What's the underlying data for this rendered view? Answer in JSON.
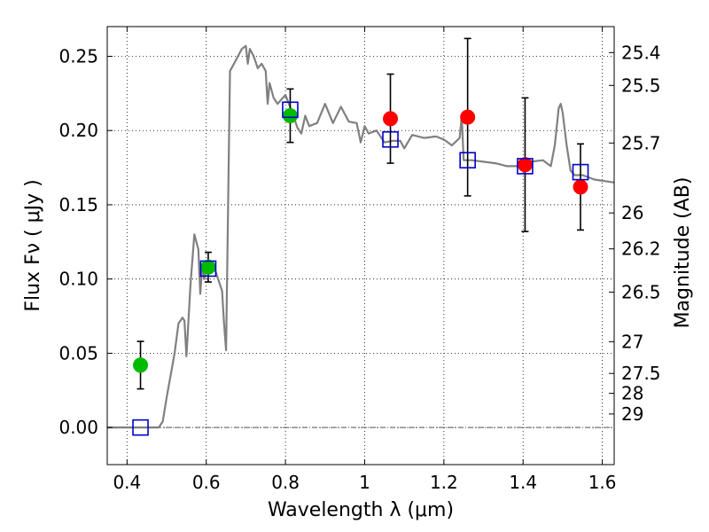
{
  "chart_data": {
    "type": "scatter",
    "xlabel": "Wavelength  λ (μm)",
    "ylabel": "Flux  Fν  ( μJy )",
    "y2label": "Magnitude (AB)",
    "xlim": [
      0.35,
      1.63
    ],
    "ylim": [
      -0.025,
      0.27
    ],
    "grid": true,
    "x_ticks": [
      0.4,
      0.6,
      0.8,
      1.0,
      1.2,
      1.4,
      1.6
    ],
    "x_tick_labels": [
      "0.4",
      "0.6",
      "0.8",
      "1",
      "1.2",
      "1.4",
      "1.6"
    ],
    "y_ticks": [
      0.0,
      0.05,
      0.1,
      0.15,
      0.2,
      0.25
    ],
    "y_tick_labels": [
      "0.00",
      "0.05",
      "0.10",
      "0.15",
      "0.20",
      "0.25"
    ],
    "mag_ticks": [
      {
        "flux": 0.2525,
        "label": "25.4"
      },
      {
        "flux": 0.2304,
        "label": "25.5"
      },
      {
        "flux": 0.1916,
        "label": "25.7"
      },
      {
        "flux": 0.1445,
        "label": "26"
      },
      {
        "flux": 0.1203,
        "label": "26.2"
      },
      {
        "flux": 0.0912,
        "label": "26.5"
      },
      {
        "flux": 0.0578,
        "label": "27"
      },
      {
        "flux": 0.0364,
        "label": "27.5"
      },
      {
        "flux": 0.023,
        "label": "28"
      },
      {
        "flux": 0.0091,
        "label": "29"
      }
    ],
    "zero_line": 0.0,
    "spectrum": {
      "color": "#808080",
      "x": [
        0.35,
        0.4,
        0.44,
        0.47,
        0.48,
        0.49,
        0.5,
        0.52,
        0.53,
        0.54,
        0.545,
        0.55,
        0.56,
        0.57,
        0.58,
        0.585,
        0.59,
        0.595,
        0.6,
        0.62,
        0.63,
        0.64,
        0.645,
        0.65,
        0.66,
        0.67,
        0.68,
        0.69,
        0.7,
        0.705,
        0.71,
        0.72,
        0.73,
        0.74,
        0.75,
        0.755,
        0.76,
        0.77,
        0.78,
        0.8,
        0.82,
        0.83,
        0.84,
        0.85,
        0.86,
        0.88,
        0.9,
        0.92,
        0.94,
        0.96,
        0.98,
        0.99,
        1.0,
        1.01,
        1.03,
        1.05,
        1.07,
        1.09,
        1.1,
        1.12,
        1.15,
        1.18,
        1.2,
        1.22,
        1.24,
        1.245,
        1.25,
        1.27,
        1.3,
        1.33,
        1.36,
        1.39,
        1.42,
        1.45,
        1.47,
        1.48,
        1.49,
        1.495,
        1.5,
        1.51,
        1.52,
        1.53,
        1.55,
        1.58,
        1.63
      ],
      "y": [
        0.0,
        0.0,
        0.0,
        0.0,
        0.0,
        0.004,
        0.02,
        0.05,
        0.07,
        0.074,
        0.072,
        0.048,
        0.095,
        0.13,
        0.12,
        0.09,
        0.11,
        0.1,
        0.112,
        0.108,
        0.1,
        0.092,
        0.07,
        0.052,
        0.24,
        0.245,
        0.25,
        0.255,
        0.257,
        0.245,
        0.255,
        0.25,
        0.242,
        0.245,
        0.24,
        0.218,
        0.232,
        0.222,
        0.218,
        0.224,
        0.21,
        0.202,
        0.198,
        0.21,
        0.203,
        0.205,
        0.218,
        0.205,
        0.216,
        0.206,
        0.205,
        0.192,
        0.203,
        0.198,
        0.2,
        0.192,
        0.193,
        0.193,
        0.188,
        0.197,
        0.195,
        0.196,
        0.194,
        0.19,
        0.195,
        0.21,
        0.18,
        0.18,
        0.179,
        0.178,
        0.176,
        0.176,
        0.179,
        0.18,
        0.176,
        0.19,
        0.215,
        0.218,
        0.212,
        0.19,
        0.173,
        0.17,
        0.17,
        0.167,
        0.165
      ]
    },
    "series": [
      {
        "name": "green",
        "marker": "circle",
        "color": "#00bb00",
        "points": [
          {
            "x": 0.434,
            "y": 0.042,
            "err": 0.016
          },
          {
            "x": 0.605,
            "y": 0.108,
            "err": 0.01
          },
          {
            "x": 0.812,
            "y": 0.21,
            "err": 0.018
          }
        ]
      },
      {
        "name": "red",
        "marker": "circle",
        "color": "#ff0000",
        "points": [
          {
            "x": 1.065,
            "y": 0.208,
            "err": 0.03
          },
          {
            "x": 1.26,
            "y": 0.209,
            "err": 0.053
          },
          {
            "x": 1.405,
            "y": 0.177,
            "err": 0.045
          },
          {
            "x": 1.545,
            "y": 0.162,
            "err": 0.029
          }
        ]
      },
      {
        "name": "blue",
        "marker": "square",
        "color": "#0000cc",
        "points": [
          {
            "x": 0.434,
            "y": 0.0
          },
          {
            "x": 0.605,
            "y": 0.107
          },
          {
            "x": 0.812,
            "y": 0.214
          },
          {
            "x": 1.065,
            "y": 0.194
          },
          {
            "x": 1.26,
            "y": 0.18
          },
          {
            "x": 1.405,
            "y": 0.176
          },
          {
            "x": 1.545,
            "y": 0.172
          }
        ]
      }
    ]
  }
}
